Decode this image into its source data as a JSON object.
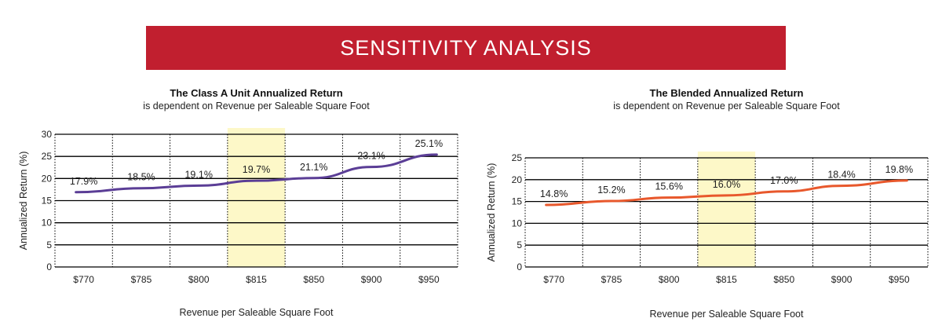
{
  "header": {
    "title": "SENSITIVITY ANALYSIS",
    "bg_color": "#c11f2f"
  },
  "chart_data": [
    {
      "type": "line",
      "title": "The Class A Unit Annualized Return",
      "subtitle": "is dependent on Revenue per Saleable Square Foot",
      "xlabel": "Revenue per Saleable Square Foot",
      "ylabel": "Annualized Return (%)",
      "categories": [
        "$770",
        "$785",
        "$800",
        "$815",
        "$850",
        "$900",
        "$950"
      ],
      "values": [
        17.9,
        18.5,
        19.1,
        19.7,
        21.1,
        23.1,
        25.1
      ],
      "value_labels": [
        "17.9%",
        "18.5%",
        "19.1%",
        "19.7%",
        "21.1%",
        "23.1%",
        "25.1%"
      ],
      "line_points": [
        16.9,
        17.8,
        18.4,
        19.5,
        20.1,
        22.6,
        25.4
      ],
      "ylim": [
        0,
        30
      ],
      "yticks": [
        0,
        5,
        10,
        15,
        20,
        25,
        30
      ],
      "highlight_category": "$815",
      "line_color": "#5b3e96",
      "highlight_color": "#fdf8c8",
      "grid": true
    },
    {
      "type": "line",
      "title": "The Blended Annualized Return",
      "subtitle": "is dependent on Revenue per Saleable Square Foot",
      "xlabel": "Revenue per Saleable Square Foot",
      "ylabel": "Annualized Return (%)",
      "categories": [
        "$770",
        "$785",
        "$800",
        "$815",
        "$850",
        "$900",
        "$950"
      ],
      "values": [
        14.8,
        15.2,
        15.6,
        16.0,
        17.0,
        18.4,
        19.8
      ],
      "value_labels": [
        "14.8%",
        "15.2%",
        "15.6%",
        "16.0%",
        "17.0%",
        "18.4%",
        "19.8%"
      ],
      "line_points": [
        14.2,
        15.1,
        15.9,
        16.4,
        17.3,
        18.6,
        19.8
      ],
      "ylim": [
        0,
        25
      ],
      "yticks": [
        0,
        5,
        10,
        15,
        20,
        25
      ],
      "highlight_category": "$815",
      "line_color": "#e8582c",
      "highlight_color": "#fdf8c8",
      "grid": true
    }
  ]
}
